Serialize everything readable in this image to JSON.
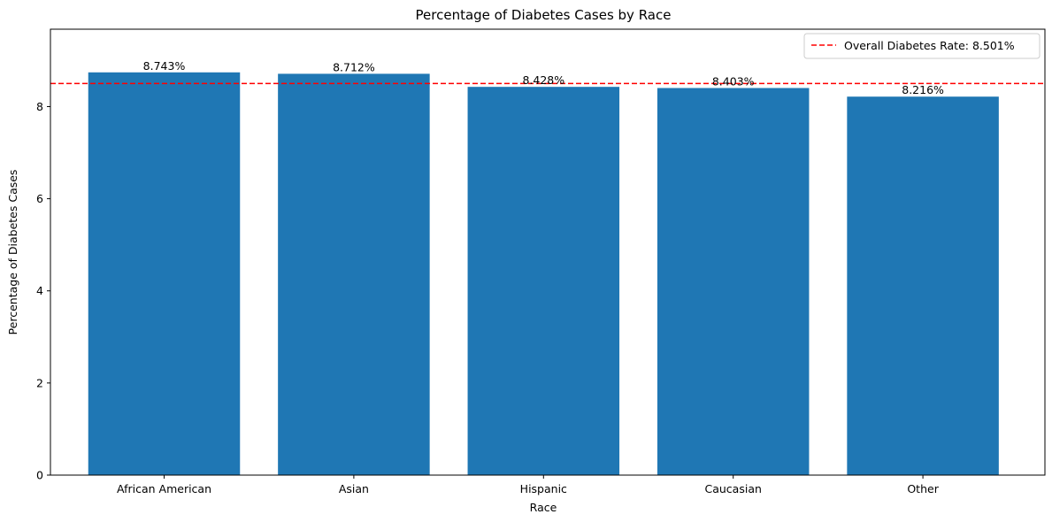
{
  "chart_data": {
    "type": "bar",
    "title": "Percentage of Diabetes Cases by Race",
    "xlabel": "Race",
    "ylabel": "Percentage of Diabetes Cases",
    "categories": [
      "African American",
      "Asian",
      "Hispanic",
      "Caucasian",
      "Other"
    ],
    "values": [
      8.743,
      8.712,
      8.428,
      8.403,
      8.216
    ],
    "data_labels": [
      "8.743%",
      "8.712%",
      "8.428%",
      "8.403%",
      "8.216%"
    ],
    "ylim": [
      0,
      9.68
    ],
    "yticks": [
      0,
      2,
      4,
      6,
      8
    ],
    "ytick_labels": [
      "0",
      "2",
      "4",
      "6",
      "8"
    ],
    "reference_line": {
      "value": 8.501,
      "label": "Overall Diabetes Rate: 8.501%",
      "color": "#ff0000",
      "style": "dashed"
    },
    "bar_color": "#1f77b4",
    "grid": false,
    "legend_position": "top-right"
  }
}
